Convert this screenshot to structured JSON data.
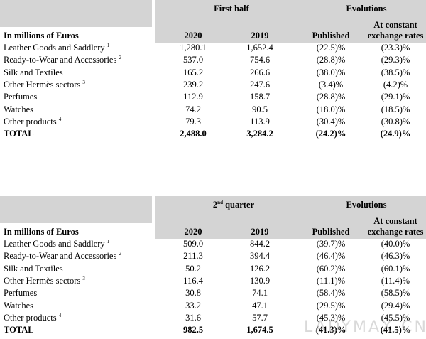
{
  "tables": [
    {
      "period": "First half",
      "evolutions": "Evolutions",
      "constant": [
        "At constant",
        "exchange rates"
      ],
      "row_header": "In millions of Euros",
      "columns": [
        "2020",
        "2019",
        "Published"
      ],
      "rows": [
        {
          "label": "Leather Goods and Saddlery",
          "note": "1",
          "values": [
            "1,280.1",
            "1,652.4",
            "(22.5)%",
            "(23.3)%"
          ]
        },
        {
          "label": "Ready-to-Wear and Accessories",
          "note": "2",
          "values": [
            "537.0",
            "754.6",
            "(28.8)%",
            "(29.3)%"
          ]
        },
        {
          "label": "Silk and Textiles",
          "values": [
            "165.2",
            "266.6",
            "(38.0)%",
            "(38.5)%"
          ]
        },
        {
          "label": "Other Hermès sectors",
          "note": "3",
          "values": [
            "239.2",
            "247.6",
            "(3.4)%",
            "(4.2)%"
          ]
        },
        {
          "label": "Perfumes",
          "values": [
            "112.9",
            "158.7",
            "(28.8)%",
            "(29.1)%"
          ]
        },
        {
          "label": "Watches",
          "values": [
            "74.2",
            "90.5",
            "(18.0)%",
            "(18.5)%"
          ]
        },
        {
          "label": "Other products",
          "note": "4",
          "values": [
            "79.3",
            "113.9",
            "(30.4)%",
            "(30.8)%"
          ]
        },
        {
          "label": "TOTAL",
          "values": [
            "2,488.0",
            "3,284.2",
            "(24.2)%",
            "(24.9)%"
          ]
        }
      ]
    },
    {
      "period": {
        "number": "2",
        "suffix": "nd",
        "text": "quarter"
      },
      "evolutions": "Evolutions",
      "constant": [
        "At constant",
        "exchange rates"
      ],
      "row_header": "In millions of Euros",
      "columns": [
        "2020",
        "2019",
        "Published"
      ],
      "rows": [
        {
          "label": "Leather Goods and Saddlery",
          "note": "1",
          "values": [
            "509.0",
            "844.2",
            "(39.7)%",
            "(40.0)%"
          ]
        },
        {
          "label": "Ready-to-Wear and Accessories",
          "note": "2",
          "values": [
            "211.3",
            "394.4",
            "(46.4)%",
            "(46.3)%"
          ]
        },
        {
          "label": "Silk and Textiles",
          "values": [
            "50.2",
            "126.2",
            "(60.2)%",
            "(60.1)%"
          ]
        },
        {
          "label": "Other Hermès sectors",
          "note": "3",
          "values": [
            "116.4",
            "130.9",
            "(11.1)%",
            "(11.4)%"
          ]
        },
        {
          "label": "Perfumes",
          "values": [
            "30.8",
            "74.1",
            "(58.4)%",
            "(58.5)%"
          ]
        },
        {
          "label": "Watches",
          "values": [
            "33.2",
            "47.1",
            "(29.5)%",
            "(29.4)%"
          ]
        },
        {
          "label": "Other products",
          "note": "4",
          "values": [
            "31.6",
            "57.7",
            "(45.3)%",
            "(45.5)%"
          ]
        },
        {
          "label": "TOTAL",
          "values": [
            "982.5",
            "1,674.5",
            "(41.3)%",
            "(41.5)%"
          ]
        }
      ]
    }
  ],
  "watermark": "LADYMAX.CN"
}
